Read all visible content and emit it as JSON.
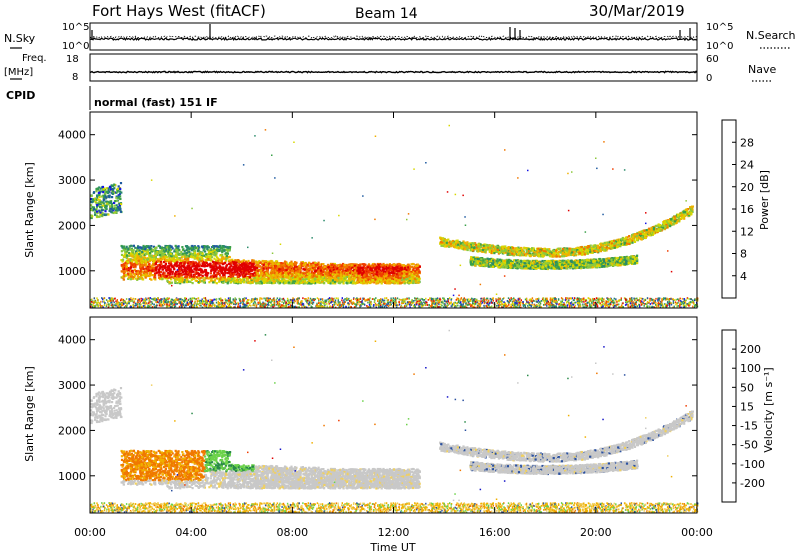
{
  "header": {
    "station": "Fort Hays West (fitACF)",
    "beam": "Beam 14",
    "date": "30/Mar/2019"
  },
  "top_panels": {
    "nsky_label": "N.Sky",
    "nsearch_label": "N.Search",
    "freq_label_1": "Freq.",
    "freq_label_2": "[MHz]",
    "nave_label": "Nave",
    "cpid_label": "CPID",
    "cpid_value": "normal (fast) 151 IF",
    "nsky_ticks": [
      "10^5",
      "10^0"
    ],
    "nsearch_ticks": [
      "10^5",
      "10^0"
    ],
    "freq_ticks": [
      "18",
      "8"
    ],
    "nave_ticks": [
      "60",
      "0"
    ]
  },
  "colors": {
    "power_scale": [
      "#1414e6",
      "#1e5aa0",
      "#2a8a6a",
      "#3aa04a",
      "#8cc83c",
      "#d8d800",
      "#f0b000",
      "#f07800",
      "#f03c00",
      "#e00000"
    ],
    "velocity_scale": [
      "#e00000",
      "#f03c00",
      "#f07800",
      "#f0b000",
      "#f0d060",
      "#c8c8c8",
      "#c8c8c8",
      "#6cd24a",
      "#2a8a4a",
      "#2a50a0",
      "#1414c8"
    ]
  },
  "chart_data": [
    {
      "type": "heatmap",
      "name": "power-panel",
      "ylabel": "Slant Range [km]",
      "ylim": [
        180,
        4500
      ],
      "xlim_hours": [
        0,
        24
      ],
      "yticks": [
        1000,
        2000,
        3000,
        4000
      ],
      "colorbar": {
        "label": "Power [dB]",
        "ticks": [
          4,
          8,
          12,
          16,
          20,
          24,
          28
        ]
      }
    },
    {
      "type": "heatmap",
      "name": "velocity-panel",
      "ylabel": "Slant Range [km]",
      "ylim": [
        180,
        4500
      ],
      "xlim_hours": [
        0,
        24
      ],
      "yticks": [
        1000,
        2000,
        3000,
        4000
      ],
      "xticks": [
        "00:00",
        "04:00",
        "08:00",
        "12:00",
        "16:00",
        "20:00",
        "00:00"
      ],
      "xlabel": "Time UT",
      "colorbar": {
        "label": "Velocity [m s⁻¹]",
        "ticks": [
          200,
          100,
          50,
          15,
          -15,
          -50,
          -100,
          -200
        ]
      }
    }
  ]
}
